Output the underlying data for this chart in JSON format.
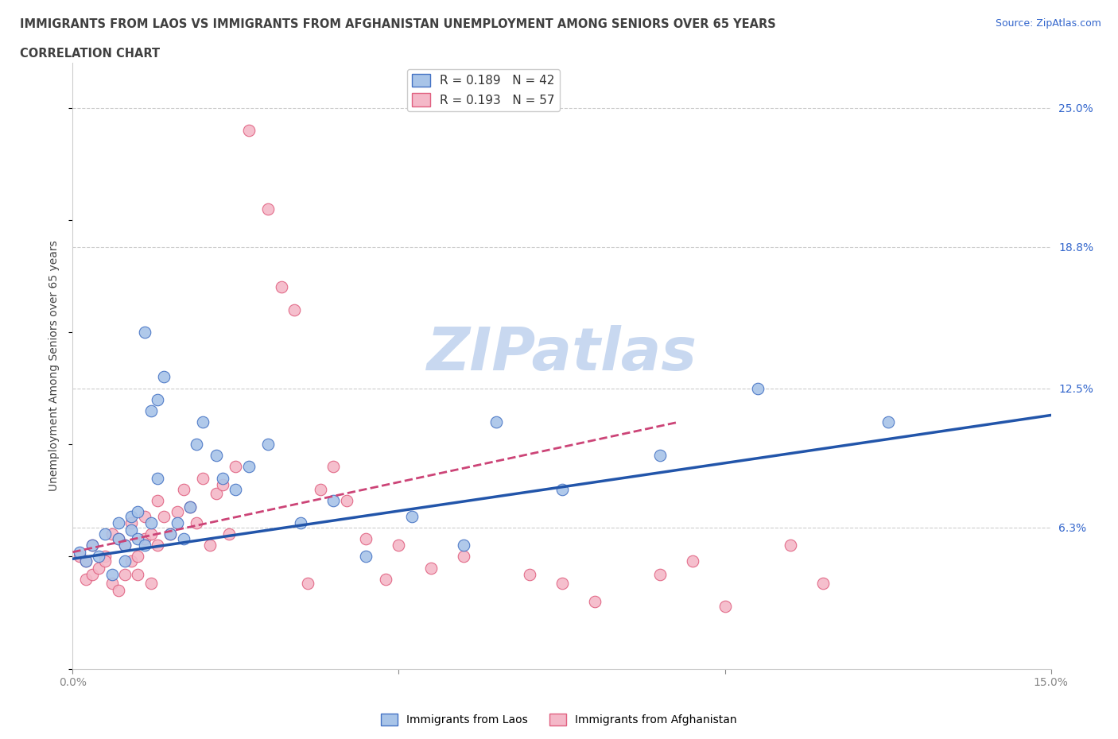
{
  "title_line1": "IMMIGRANTS FROM LAOS VS IMMIGRANTS FROM AFGHANISTAN UNEMPLOYMENT AMONG SENIORS OVER 65 YEARS",
  "title_line2": "CORRELATION CHART",
  "source_text": "Source: ZipAtlas.com",
  "ylabel": "Unemployment Among Seniors over 65 years",
  "xlim": [
    0.0,
    0.15
  ],
  "ylim": [
    0.0,
    0.27
  ],
  "yticks_right": [
    0.063,
    0.125,
    0.188,
    0.25
  ],
  "ytick_labels_right": [
    "6.3%",
    "12.5%",
    "18.8%",
    "25.0%"
  ],
  "legend_r1": "R = 0.189   N = 42",
  "legend_r2": "R = 0.193   N = 57",
  "color_laos_fill": "#a8c4e8",
  "color_laos_edge": "#4472c4",
  "color_afghanistan_fill": "#f4b8c8",
  "color_afghanistan_edge": "#e06080",
  "color_laos_line": "#2255aa",
  "color_afghanistan_line": "#cc4477",
  "title_color": "#404040",
  "axis_color": "#3366cc",
  "watermark_color": "#c8d8f0",
  "laos_x": [
    0.001,
    0.002,
    0.003,
    0.004,
    0.005,
    0.006,
    0.007,
    0.007,
    0.008,
    0.008,
    0.009,
    0.009,
    0.01,
    0.01,
    0.011,
    0.011,
    0.012,
    0.012,
    0.013,
    0.013,
    0.014,
    0.015,
    0.016,
    0.017,
    0.018,
    0.019,
    0.02,
    0.022,
    0.023,
    0.025,
    0.027,
    0.03,
    0.035,
    0.04,
    0.045,
    0.052,
    0.06,
    0.065,
    0.075,
    0.09,
    0.105,
    0.125
  ],
  "laos_y": [
    0.052,
    0.048,
    0.055,
    0.05,
    0.06,
    0.042,
    0.058,
    0.065,
    0.055,
    0.048,
    0.062,
    0.068,
    0.058,
    0.07,
    0.055,
    0.15,
    0.065,
    0.115,
    0.085,
    0.12,
    0.13,
    0.06,
    0.065,
    0.058,
    0.072,
    0.1,
    0.11,
    0.095,
    0.085,
    0.08,
    0.09,
    0.1,
    0.065,
    0.075,
    0.05,
    0.068,
    0.055,
    0.11,
    0.08,
    0.095,
    0.125,
    0.11
  ],
  "afghanistan_x": [
    0.001,
    0.002,
    0.002,
    0.003,
    0.003,
    0.004,
    0.005,
    0.005,
    0.006,
    0.006,
    0.007,
    0.007,
    0.008,
    0.008,
    0.009,
    0.009,
    0.01,
    0.01,
    0.011,
    0.011,
    0.012,
    0.012,
    0.013,
    0.013,
    0.014,
    0.015,
    0.016,
    0.017,
    0.018,
    0.019,
    0.02,
    0.021,
    0.022,
    0.023,
    0.024,
    0.025,
    0.027,
    0.03,
    0.032,
    0.034,
    0.036,
    0.038,
    0.04,
    0.042,
    0.045,
    0.048,
    0.05,
    0.055,
    0.06,
    0.07,
    0.075,
    0.08,
    0.09,
    0.095,
    0.1,
    0.11,
    0.115
  ],
  "afghanistan_y": [
    0.05,
    0.048,
    0.04,
    0.042,
    0.055,
    0.045,
    0.05,
    0.048,
    0.038,
    0.06,
    0.035,
    0.058,
    0.042,
    0.055,
    0.048,
    0.065,
    0.05,
    0.042,
    0.058,
    0.068,
    0.038,
    0.06,
    0.055,
    0.075,
    0.068,
    0.06,
    0.07,
    0.08,
    0.072,
    0.065,
    0.085,
    0.055,
    0.078,
    0.082,
    0.06,
    0.09,
    0.24,
    0.205,
    0.17,
    0.16,
    0.038,
    0.08,
    0.09,
    0.075,
    0.058,
    0.04,
    0.055,
    0.045,
    0.05,
    0.042,
    0.038,
    0.03,
    0.042,
    0.048,
    0.028,
    0.055,
    0.038
  ],
  "laos_trendline_x": [
    0.0,
    0.15
  ],
  "laos_trendline_y": [
    0.049,
    0.113
  ],
  "afghanistan_trendline_x": [
    0.0,
    0.093
  ],
  "afghanistan_trendline_y": [
    0.052,
    0.11
  ]
}
